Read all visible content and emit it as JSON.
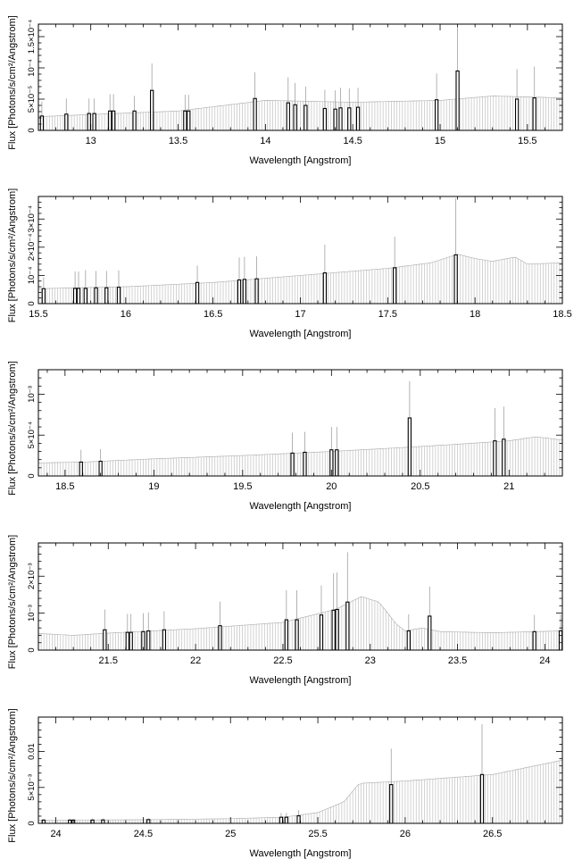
{
  "chart_data": [
    {
      "type": "bar",
      "xlabel": "Wavelength [Angstrom]",
      "ylabel": "Flux [Photons/s/cm²/Angstrom]",
      "xlim": [
        12.7,
        15.7
      ],
      "ylim": [
        0,
        0.00017
      ],
      "xticks": [
        {
          "v": 13,
          "label": "13"
        },
        {
          "v": 13.5,
          "label": "13.5"
        },
        {
          "v": 14,
          "label": "14"
        },
        {
          "v": 14.5,
          "label": "14.5"
        },
        {
          "v": 15,
          "label": "15"
        },
        {
          "v": 15.5,
          "label": "15.5"
        }
      ],
      "yticks": [
        {
          "v": 0,
          "label": "0"
        },
        {
          "v": 5e-05,
          "label": "5×10⁻⁵"
        },
        {
          "v": 0.0001,
          "label": "10⁻⁴"
        },
        {
          "v": 0.00015,
          "label": "1.5×10⁻⁴"
        }
      ],
      "continuum": [
        [
          12.7,
          2.2e-05
        ],
        [
          13.5,
          3.1e-05
        ],
        [
          14.0,
          4.8e-05
        ],
        [
          14.5,
          4.5e-05
        ],
        [
          15.0,
          4.8e-05
        ],
        [
          15.3,
          5.5e-05
        ],
        [
          15.7,
          5.2e-05
        ]
      ],
      "lines": [
        [
          12.72,
          2.3e-05,
          2.3e-05
        ],
        [
          12.86,
          2.6e-05,
          2.5e-05
        ],
        [
          12.99,
          2.7e-05,
          2.4e-05
        ],
        [
          13.02,
          2.7e-05,
          2.4e-05
        ],
        [
          13.11,
          3.1e-05,
          2.7e-05
        ],
        [
          13.13,
          3.1e-05,
          2.7e-05
        ],
        [
          13.25,
          3.1e-05,
          2.4e-05
        ],
        [
          13.35,
          6.4e-05,
          4.3e-05
        ],
        [
          13.54,
          3.1e-05,
          2.6e-05
        ],
        [
          13.56,
          3.1e-05,
          2.6e-05
        ],
        [
          13.94,
          5.1e-05,
          4.2e-05
        ],
        [
          14.13,
          4.4e-05,
          4.1e-05
        ],
        [
          14.17,
          4.1e-05,
          3.5e-05
        ],
        [
          14.23,
          4e-05,
          3e-05
        ],
        [
          14.34,
          3.5e-05,
          3e-05
        ],
        [
          14.4,
          3.4e-05,
          3e-05
        ],
        [
          14.43,
          3.6e-05,
          3.2e-05
        ],
        [
          14.48,
          3.6e-05,
          3.1e-05
        ],
        [
          14.53,
          3.7e-05,
          3.1e-05
        ],
        [
          14.98,
          4.9e-05,
          4.2e-05
        ],
        [
          15.1,
          9.5e-05,
          7e-05
        ],
        [
          15.44,
          5e-05,
          4.8e-05
        ],
        [
          15.54,
          5.2e-05,
          5e-05
        ]
      ]
    },
    {
      "type": "bar",
      "xlabel": "Wavelength [Angstrom]",
      "ylabel": "Flux [Photons/s/cm²/Angstrom]",
      "xlim": [
        15.5,
        18.5
      ],
      "ylim": [
        0,
        0.00038
      ],
      "xticks": [
        {
          "v": 15.5,
          "label": "15.5"
        },
        {
          "v": 16,
          "label": "16"
        },
        {
          "v": 16.5,
          "label": "16.5"
        },
        {
          "v": 17,
          "label": "17"
        },
        {
          "v": 17.5,
          "label": "17.5"
        },
        {
          "v": 18,
          "label": "18"
        },
        {
          "v": 18.5,
          "label": "18.5"
        }
      ],
      "yticks": [
        {
          "v": 0,
          "label": "0"
        },
        {
          "v": 0.0001,
          "label": "10⁻⁴"
        },
        {
          "v": 0.0002,
          "label": "2×10⁻⁴"
        },
        {
          "v": 0.0003,
          "label": "3×10⁻⁴"
        }
      ],
      "continuum": [
        [
          15.5,
          5.3e-05
        ],
        [
          16.0,
          6e-05
        ],
        [
          16.5,
          7.5e-05
        ],
        [
          17.0,
          0.0001
        ],
        [
          17.5,
          0.000125
        ],
        [
          17.75,
          0.000145
        ],
        [
          17.9,
          0.000175
        ],
        [
          18.0,
          0.00016
        ],
        [
          18.1,
          0.00015
        ],
        [
          18.23,
          0.000165
        ],
        [
          18.3,
          0.00014
        ],
        [
          18.5,
          0.000145
        ]
      ],
      "lines": [
        [
          15.53,
          5.3e-05,
          4e-05
        ],
        [
          15.71,
          5.4e-05,
          6e-05
        ],
        [
          15.73,
          5.4e-05,
          6e-05
        ],
        [
          15.77,
          5.4e-05,
          6.5e-05
        ],
        [
          15.83,
          5.6e-05,
          6e-05
        ],
        [
          15.89,
          5.6e-05,
          6e-05
        ],
        [
          15.96,
          5.8e-05,
          6e-05
        ],
        [
          16.41,
          7.5e-05,
          6e-05
        ],
        [
          16.65,
          8.4e-05,
          8e-05
        ],
        [
          16.68,
          8.6e-05,
          8e-05
        ],
        [
          16.75,
          8.8e-05,
          8e-05
        ],
        [
          17.14,
          0.000109,
          0.0001
        ],
        [
          17.54,
          0.000127,
          0.00011
        ],
        [
          17.89,
          0.000173,
          0.0002
        ]
      ]
    },
    {
      "type": "bar",
      "xlabel": "Wavelength [Angstrom]",
      "ylabel": "Flux [Photons/s/cm²/Angstrom]",
      "xlim": [
        18.35,
        21.3
      ],
      "ylim": [
        0,
        0.0013
      ],
      "xticks": [
        {
          "v": 18.5,
          "label": "18.5"
        },
        {
          "v": 19,
          "label": "19"
        },
        {
          "v": 19.5,
          "label": "19.5"
        },
        {
          "v": 20,
          "label": "20"
        },
        {
          "v": 20.5,
          "label": "20.5"
        },
        {
          "v": 21,
          "label": "21"
        }
      ],
      "yticks": [
        {
          "v": 0,
          "label": "0"
        },
        {
          "v": 0.0005,
          "label": "5×10⁻⁴"
        },
        {
          "v": 0.001,
          "label": "10⁻³"
        }
      ],
      "continuum": [
        [
          18.35,
          0.00016
        ],
        [
          18.6,
          0.00017
        ],
        [
          19.0,
          0.00021
        ],
        [
          19.5,
          0.00025
        ],
        [
          20.0,
          0.0003
        ],
        [
          20.5,
          0.00036
        ],
        [
          21.0,
          0.00043
        ],
        [
          21.15,
          0.00048
        ],
        [
          21.3,
          0.00044
        ]
      ],
      "lines": [
        [
          18.59,
          0.00017,
          0.00015
        ],
        [
          18.7,
          0.00018,
          0.00015
        ],
        [
          19.78,
          0.00028,
          0.00025
        ],
        [
          19.85,
          0.00029,
          0.00025
        ],
        [
          20.0,
          0.00032,
          0.00028
        ],
        [
          20.03,
          0.00032,
          0.00028
        ],
        [
          20.44,
          0.00071,
          0.00045
        ],
        [
          20.92,
          0.00043,
          0.0004
        ],
        [
          20.97,
          0.00045,
          0.0004
        ]
      ]
    },
    {
      "type": "bar",
      "xlabel": "Wavelength [Angstrom]",
      "ylabel": "Flux [Photons/s/cm²/Angstrom]",
      "xlim": [
        21.1,
        24.1
      ],
      "ylim": [
        0,
        0.0029
      ],
      "xticks": [
        {
          "v": 21.5,
          "label": "21.5"
        },
        {
          "v": 22,
          "label": "22"
        },
        {
          "v": 22.5,
          "label": "22.5"
        },
        {
          "v": 23,
          "label": "23"
        },
        {
          "v": 23.5,
          "label": "23.5"
        },
        {
          "v": 24,
          "label": "24"
        }
      ],
      "yticks": [
        {
          "v": 0,
          "label": "0"
        },
        {
          "v": 0.001,
          "label": "10⁻³"
        },
        {
          "v": 0.002,
          "label": "2×10⁻³"
        }
      ],
      "continuum": [
        [
          21.1,
          0.00045
        ],
        [
          21.3,
          0.0004
        ],
        [
          21.5,
          0.00046
        ],
        [
          22.0,
          0.00058
        ],
        [
          22.5,
          0.00075
        ],
        [
          22.8,
          0.0011
        ],
        [
          22.95,
          0.00145
        ],
        [
          23.05,
          0.0013
        ],
        [
          23.15,
          0.0007
        ],
        [
          23.2,
          0.00052
        ],
        [
          23.3,
          0.0006
        ],
        [
          23.4,
          0.0005
        ],
        [
          23.7,
          0.00047
        ],
        [
          24.1,
          0.00052
        ]
      ],
      "lines": [
        [
          21.48,
          0.00055,
          0.00055
        ],
        [
          21.61,
          0.00048,
          0.0005
        ],
        [
          21.63,
          0.00048,
          0.0005
        ],
        [
          21.7,
          0.0005,
          0.0005
        ],
        [
          21.73,
          0.00052,
          0.0005
        ],
        [
          21.82,
          0.00055,
          0.0005
        ],
        [
          22.14,
          0.00066,
          0.00065
        ],
        [
          22.52,
          0.00082,
          0.0008
        ],
        [
          22.58,
          0.00082,
          0.0008
        ],
        [
          22.72,
          0.00095,
          0.0008
        ],
        [
          22.79,
          0.00108,
          0.001
        ],
        [
          22.81,
          0.0011,
          0.001
        ],
        [
          22.87,
          0.0013,
          0.00135
        ],
        [
          23.22,
          0.00052,
          0.00045
        ],
        [
          23.34,
          0.00092,
          0.0008
        ],
        [
          23.94,
          0.0005,
          0.00045
        ],
        [
          24.09,
          0.00052,
          0.00045
        ]
      ]
    },
    {
      "type": "bar",
      "xlabel": "Wavelength [Angstrom]",
      "ylabel": "Flux [Photons/s/cm²/Angstrom]",
      "xlim": [
        23.9,
        26.9
      ],
      "ylim": [
        0,
        0.0148
      ],
      "xticks": [
        {
          "v": 24,
          "label": "24"
        },
        {
          "v": 24.5,
          "label": "24.5"
        },
        {
          "v": 25,
          "label": "25"
        },
        {
          "v": 25.5,
          "label": "25.5"
        },
        {
          "v": 26,
          "label": "26"
        },
        {
          "v": 26.5,
          "label": "26.5"
        }
      ],
      "yticks": [
        {
          "v": 0,
          "label": "0"
        },
        {
          "v": 0.005,
          "label": "5×10⁻³"
        },
        {
          "v": 0.01,
          "label": "0.01"
        }
      ],
      "continuum": [
        [
          23.9,
          0.00045
        ],
        [
          24.5,
          0.0005
        ],
        [
          25.0,
          0.00065
        ],
        [
          25.3,
          0.00085
        ],
        [
          25.5,
          0.0015
        ],
        [
          25.65,
          0.003
        ],
        [
          25.73,
          0.0054
        ],
        [
          25.76,
          0.0056
        ],
        [
          26.0,
          0.0059
        ],
        [
          26.5,
          0.0068
        ],
        [
          26.9,
          0.0088
        ]
      ],
      "lines": [
        [
          23.93,
          0.00045,
          0.0002
        ],
        [
          24.08,
          0.00045,
          0.0002
        ],
        [
          24.1,
          0.00045,
          0.0002
        ],
        [
          24.21,
          0.00046,
          0.0002
        ],
        [
          24.27,
          0.00047,
          0.0002
        ],
        [
          24.53,
          0.00052,
          0.0002
        ],
        [
          25.29,
          0.00085,
          0.0006
        ],
        [
          25.32,
          0.00085,
          0.0006
        ],
        [
          25.39,
          0.00105,
          0.0008
        ],
        [
          25.92,
          0.0054,
          0.005
        ],
        [
          26.44,
          0.0068,
          0.007
        ]
      ]
    }
  ]
}
